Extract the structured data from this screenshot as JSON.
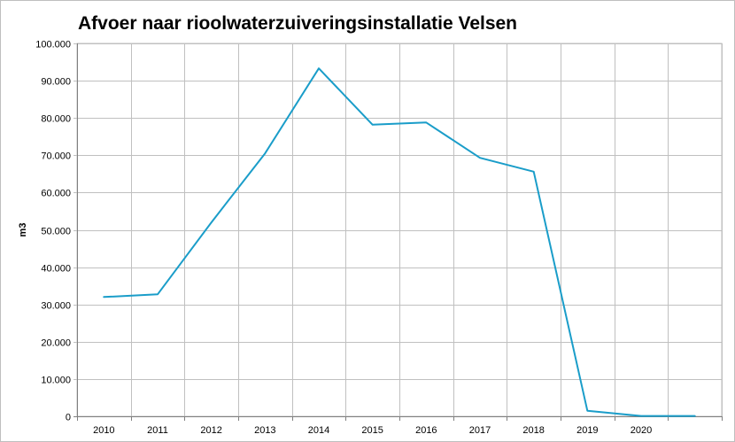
{
  "chart_data": {
    "type": "line",
    "title": "Afvoer naar rioolwaterzuiveringsinstallatie Velsen",
    "xlabel": "",
    "ylabel": "m3",
    "ylim": [
      0,
      100000
    ],
    "yticks": [
      "0",
      "10.000",
      "20.000",
      "30.000",
      "40.000",
      "50.000",
      "60.000",
      "70.000",
      "80.000",
      "90.000",
      "100.000"
    ],
    "categories": [
      "2010",
      "2011",
      "2012",
      "2013",
      "2014",
      "2015",
      "2016",
      "2017",
      "2018",
      "2019",
      "2020",
      ""
    ],
    "series": [
      {
        "values": [
          32000,
          32700,
          52000,
          70500,
          93300,
          78200,
          78800,
          69300,
          65600,
          1500,
          100,
          100
        ]
      }
    ],
    "grid": true,
    "legend": "none",
    "colors": {
      "line": "#1a9dc9",
      "grid": "#c0c0c0",
      "axis": "#808080"
    }
  }
}
